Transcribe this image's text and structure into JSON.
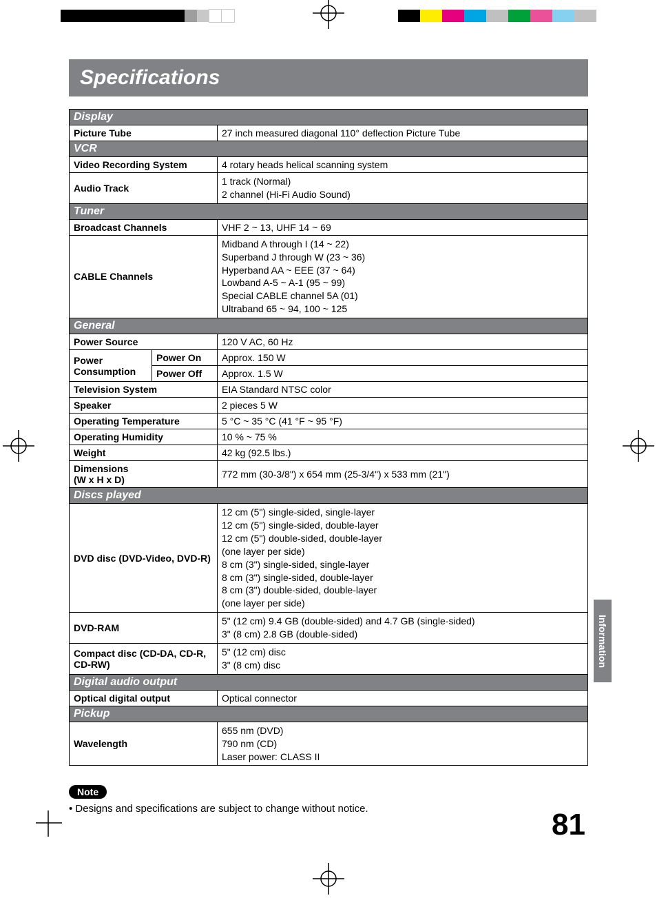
{
  "colors": {
    "section_bg": "#808285",
    "section_fg": "#ffffff",
    "border": "#000000",
    "page_bg": "#ffffff",
    "text": "#000000"
  },
  "print_marks": {
    "bw_strip_widths": [
      30,
      30,
      30,
      30,
      30,
      30,
      18,
      18,
      18,
      18
    ],
    "bw_strip_colors": [
      "#000",
      "#000",
      "#000",
      "#000",
      "#000",
      "#000",
      "#9e9e9e",
      "#c8c8c8",
      "#fff",
      "#fff"
    ],
    "color_strip": [
      "#000",
      "#ffed00",
      "#e6007e",
      "#00a5e3",
      "#c0c0c0",
      "#00a13a",
      "#ea5198",
      "#86d0f0",
      "#c0c0c0"
    ]
  },
  "title": "Specifications",
  "side_tab": "Information",
  "page_number": "81",
  "sections": [
    {
      "heading": "Display",
      "rows": [
        {
          "label": "Picture Tube",
          "value": "27 inch measured diagonal 110° deflection Picture Tube"
        }
      ]
    },
    {
      "heading": "VCR",
      "rows": [
        {
          "label": "Video Recording System",
          "value": "4 rotary heads helical scanning system"
        },
        {
          "label": "Audio Track",
          "value": "1 track (Normal)\n2 channel (Hi-Fi Audio Sound)",
          "multiline": true
        }
      ]
    },
    {
      "heading": "Tuner",
      "rows": [
        {
          "label": "Broadcast Channels",
          "value": "VHF 2 ~ 13, UHF 14 ~ 69"
        },
        {
          "label": "CABLE Channels",
          "value": "Midband A through I (14 ~ 22)\nSuperband J through W (23 ~ 36)\nHyperband AA ~ EEE (37 ~ 64)\nLowband A-5 ~ A-1 (95 ~ 99)\nSpecial CABLE channel 5A (01)\nUltraband 65 ~ 94, 100 ~ 125",
          "multiline": true
        }
      ]
    },
    {
      "heading": "General",
      "rows": [
        {
          "label": "Power Source",
          "value": "120 V AC, 60 Hz"
        },
        {
          "label": "Power Consumption",
          "subrows": [
            {
              "sublabel": "Power On",
              "value": "Approx. 150 W"
            },
            {
              "sublabel": "Power Off",
              "value": "Approx. 1.5 W"
            }
          ]
        },
        {
          "label": "Television System",
          "value": "EIA Standard NTSC color"
        },
        {
          "label": "Speaker",
          "value": "2 pieces 5 W"
        },
        {
          "label": "Operating Temperature",
          "value": "5 °C ~ 35 °C (41 °F ~ 95 °F)"
        },
        {
          "label": "Operating Humidity",
          "value": "10 % ~ 75 %"
        },
        {
          "label": "Weight",
          "value": "42 kg (92.5 lbs.)"
        },
        {
          "label": "Dimensions\n(W x H x D)",
          "value": "772 mm (30-3/8ʺ) x 654 mm (25-3/4ʺ) x 533 mm (21ʺ)",
          "label_multiline": true
        }
      ]
    },
    {
      "heading": "Discs played",
      "rows": [
        {
          "label": "DVD disc (DVD-Video, DVD-R)",
          "value": "12 cm (5ʺ) single-sided, single-layer\n12 cm (5ʺ) single-sided, double-layer\n12 cm (5ʺ) double-sided, double-layer\n(one layer per side)\n8 cm (3ʺ) single-sided, single-layer\n8 cm (3ʺ) single-sided, double-layer\n8 cm (3ʺ) double-sided, double-layer\n(one layer per side)",
          "multiline": true
        },
        {
          "label": "DVD-RAM",
          "value": "5ʺ (12 cm) 9.4 GB (double-sided) and 4.7 GB (single-sided)\n3ʺ (8 cm) 2.8 GB (double-sided)",
          "multiline": true
        },
        {
          "label": "Compact disc (CD-DA, CD-R, CD-RW)",
          "value": "5ʺ (12 cm) disc\n3ʺ (8 cm) disc",
          "multiline": true,
          "label_multiline": true
        }
      ]
    },
    {
      "heading": "Digital audio output",
      "rows": [
        {
          "label": "Optical digital output",
          "value": "Optical connector"
        }
      ]
    },
    {
      "heading": "Pickup",
      "rows": [
        {
          "label": "Wavelength",
          "value": "655 nm (DVD)\n790 nm (CD)\nLaser power: CLASS II",
          "multiline": true
        }
      ]
    }
  ],
  "note": {
    "badge": "Note",
    "text": "• Designs and specifications are subject to change without notice."
  }
}
